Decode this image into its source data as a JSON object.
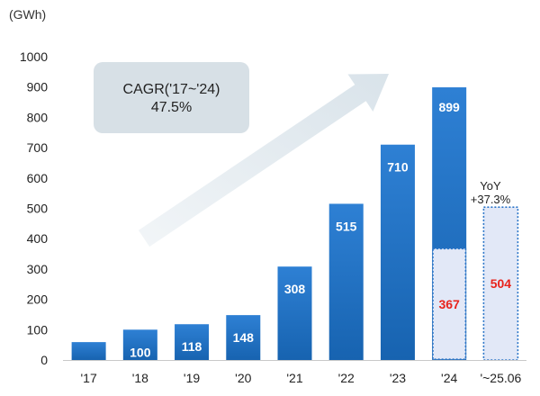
{
  "chart_data": {
    "type": "bar",
    "unit": "(GWh)",
    "categories": [
      "'17",
      "'18",
      "'19",
      "'20",
      "'21",
      "'22",
      "'23",
      "'24",
      "'~25.06"
    ],
    "values": [
      59,
      100,
      118,
      148,
      308,
      515,
      710,
      899,
      504
    ],
    "highlight": {
      "label": "'24",
      "value": 367,
      "text": "367"
    },
    "partial_period": {
      "label": "'~25.06",
      "value": 504,
      "text": "504",
      "yoy_line1": "YoY",
      "yoy_line2": "+37.3%"
    },
    "annotation": {
      "line1": "CAGR('17~'24)",
      "line2": "47.5%"
    },
    "yticks": [
      0,
      100,
      200,
      300,
      400,
      500,
      600,
      700,
      800,
      900,
      1000
    ],
    "ylim": [
      0,
      1000
    ],
    "colors": {
      "bar_top": "#2e80d4",
      "bar_bottom": "#1763b0",
      "highlight_fill": "#e2e8f7",
      "highlight_border": "#2a74c8",
      "highlight_text": "#e8231c",
      "bar_text": "#ffffff",
      "arrow": "#d9e3ea",
      "note_box": "#d7e0e6"
    }
  }
}
